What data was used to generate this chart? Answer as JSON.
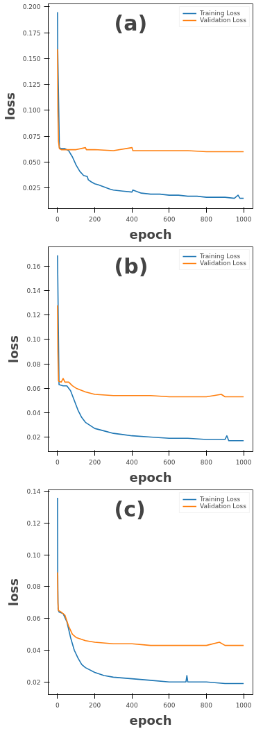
{
  "chart_data": [
    {
      "type": "line",
      "xlabel": "epoch",
      "ylabel": "loss",
      "annotations": [
        "(a)"
      ],
      "xlim": [
        -50,
        1050
      ],
      "ylim": [
        0.005,
        0.203
      ],
      "xticks": [
        0,
        200,
        400,
        600,
        800,
        1000
      ],
      "yticks": [
        {
          "value": 0.025,
          "label": "0.025"
        },
        {
          "value": 0.05,
          "label": "0.050"
        },
        {
          "value": 0.075,
          "label": "0.075"
        },
        {
          "value": 0.1,
          "label": "0.100"
        },
        {
          "value": 0.125,
          "label": "0.125"
        },
        {
          "value": 0.15,
          "label": "0.150"
        },
        {
          "value": 0.175,
          "label": "0.175"
        },
        {
          "value": 0.2,
          "label": "0.200"
        }
      ],
      "grid": false,
      "legend": "top right",
      "marker": "none",
      "line_style": "solid",
      "series": [
        {
          "name": "Training Loss",
          "color": "#1f77b4",
          "x": [
            0,
            1,
            10,
            20,
            40,
            60,
            80,
            100,
            120,
            140,
            160,
            165,
            180,
            200,
            220,
            250,
            280,
            300,
            350,
            400,
            405,
            450,
            500,
            550,
            600,
            650,
            700,
            750,
            800,
            850,
            900,
            950,
            970,
            980,
            1000
          ],
          "values": [
            0.195,
            0.16,
            0.064,
            0.063,
            0.063,
            0.061,
            0.055,
            0.047,
            0.041,
            0.037,
            0.036,
            0.033,
            0.031,
            0.029,
            0.028,
            0.026,
            0.024,
            0.023,
            0.022,
            0.021,
            0.023,
            0.02,
            0.019,
            0.019,
            0.018,
            0.018,
            0.017,
            0.017,
            0.016,
            0.016,
            0.016,
            0.015,
            0.018,
            0.015,
            0.015
          ]
        },
        {
          "name": "Validation Loss",
          "color": "#ff7f0e",
          "x": [
            0,
            2,
            5,
            10,
            20,
            50,
            100,
            150,
            155,
            200,
            300,
            400,
            405,
            500,
            600,
            700,
            800,
            900,
            1000
          ],
          "values": [
            0.159,
            0.1,
            0.07,
            0.063,
            0.062,
            0.062,
            0.062,
            0.064,
            0.062,
            0.062,
            0.061,
            0.064,
            0.061,
            0.061,
            0.061,
            0.061,
            0.06,
            0.06,
            0.06
          ]
        }
      ]
    },
    {
      "type": "line",
      "xlabel": "epoch",
      "ylabel": "loss",
      "annotations": [
        "(b)"
      ],
      "xlim": [
        -50,
        1050
      ],
      "ylim": [
        0.008,
        0.176
      ],
      "xticks": [
        0,
        200,
        400,
        600,
        800,
        1000
      ],
      "yticks": [
        0.02,
        0.04,
        0.06,
        0.08,
        {
          "value": 0.1,
          "label": "0.10"
        },
        0.12,
        0.14,
        0.16
      ],
      "grid": false,
      "legend": "top right",
      "marker": "none",
      "line_style": "solid",
      "series": [
        {
          "name": "Training Loss",
          "color": "#1f77b4",
          "x": [
            0,
            8,
            30,
            50,
            70,
            90,
            110,
            130,
            150,
            180,
            200,
            250,
            300,
            350,
            400,
            500,
            600,
            700,
            800,
            900,
            910,
            920,
            1000
          ],
          "values": [
            0.169,
            0.063,
            0.062,
            0.062,
            0.058,
            0.05,
            0.042,
            0.036,
            0.032,
            0.029,
            0.027,
            0.025,
            0.023,
            0.022,
            0.021,
            0.02,
            0.019,
            0.019,
            0.018,
            0.018,
            0.021,
            0.017,
            0.017
          ]
        },
        {
          "name": "Validation Loss",
          "color": "#ff7f0e",
          "x": [
            0,
            2,
            5,
            20,
            30,
            40,
            60,
            80,
            100,
            150,
            200,
            300,
            400,
            500,
            600,
            700,
            800,
            880,
            900,
            1000
          ],
          "values": [
            0.128,
            0.09,
            0.066,
            0.065,
            0.068,
            0.065,
            0.065,
            0.062,
            0.06,
            0.057,
            0.055,
            0.054,
            0.054,
            0.054,
            0.053,
            0.053,
            0.053,
            0.055,
            0.053,
            0.053
          ]
        }
      ]
    },
    {
      "type": "line",
      "xlabel": "epoch",
      "ylabel": "loss",
      "annotations": [
        "(c)"
      ],
      "xlim": [
        -50,
        1050
      ],
      "ylim": [
        0.012,
        0.141
      ],
      "xticks": [
        0,
        200,
        400,
        600,
        800,
        1000
      ],
      "yticks": [
        0.02,
        0.04,
        0.06,
        0.08,
        {
          "value": 0.1,
          "label": "0.10"
        },
        0.12,
        0.14
      ],
      "grid": false,
      "legend": "top right",
      "marker": "none",
      "line_style": "solid",
      "series": [
        {
          "name": "Training Loss",
          "color": "#1f77b4",
          "x": [
            0,
            1,
            3,
            8,
            30,
            50,
            70,
            90,
            110,
            130,
            150,
            200,
            250,
            300,
            400,
            500,
            600,
            690,
            695,
            700,
            800,
            900,
            1000
          ],
          "values": [
            0.136,
            0.09,
            0.066,
            0.064,
            0.063,
            0.058,
            0.048,
            0.04,
            0.035,
            0.031,
            0.029,
            0.026,
            0.024,
            0.023,
            0.022,
            0.021,
            0.02,
            0.02,
            0.024,
            0.02,
            0.02,
            0.019,
            0.019
          ]
        },
        {
          "name": "Validation Loss",
          "color": "#ff7f0e",
          "x": [
            0,
            2,
            5,
            20,
            40,
            60,
            80,
            100,
            150,
            200,
            300,
            400,
            500,
            600,
            700,
            800,
            870,
            900,
            1000
          ],
          "values": [
            0.089,
            0.07,
            0.065,
            0.064,
            0.062,
            0.055,
            0.05,
            0.048,
            0.046,
            0.045,
            0.044,
            0.044,
            0.043,
            0.043,
            0.043,
            0.043,
            0.045,
            0.043,
            0.043
          ]
        }
      ]
    }
  ]
}
